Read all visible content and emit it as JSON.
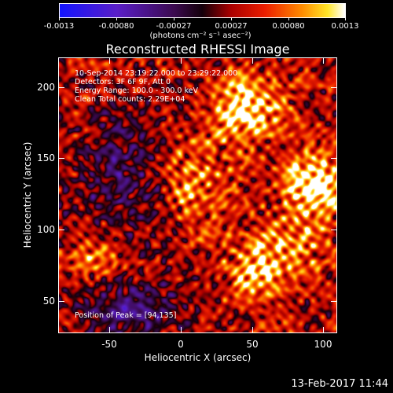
{
  "colorbar": {
    "ticks": [
      "-0.0013",
      "-0.00080",
      "-0.00027",
      "0.00027",
      "0.00080",
      "0.0013"
    ],
    "units": "(photons cm⁻² s⁻¹ asec⁻²)",
    "range": [
      -0.0013,
      0.0013
    ]
  },
  "title": "Reconstructed RHESSI Image",
  "info": {
    "time": "10-Sep-2014 23:19:22.000 to 23:29:22.000",
    "detectors": "Detectors: 3F 6F 9F, Att 0",
    "energy": "Energy Range: 100.0 - 300.0 keV",
    "clean": "Clean     Total counts: 2.29E+04",
    "peak": "Position of Peak = [94,135]"
  },
  "axes": {
    "xlabel": "Heliocentric X (arcsec)",
    "ylabel": "Heliocentric Y (arcsec)",
    "xticks": [
      "-50",
      "0",
      "50",
      "100"
    ],
    "yticks": [
      "200",
      "150",
      "100",
      "50"
    ],
    "xlim": [
      -85,
      110
    ],
    "ylim": [
      30,
      220
    ]
  },
  "timestamp": "13-Feb-2017 11:44",
  "chart_data": {
    "type": "heatmap",
    "title": "Reconstructed RHESSI Image",
    "xlabel": "Heliocentric X (arcsec)",
    "ylabel": "Heliocentric Y (arcsec)",
    "xlim": [
      -85,
      110
    ],
    "ylim": [
      30,
      220
    ],
    "peak_position": [
      94,
      135
    ],
    "colorscale": "blue-purple-red-yellow-white"
  }
}
